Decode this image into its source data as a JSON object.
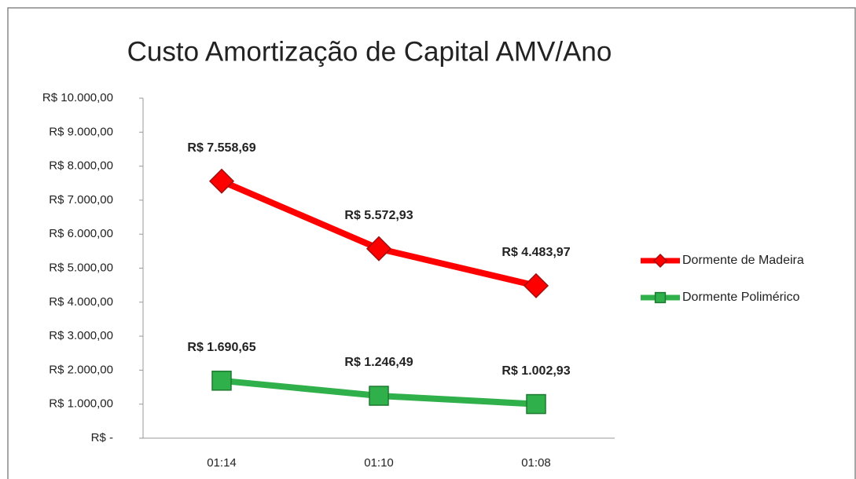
{
  "chart_data": {
    "type": "line",
    "title": "Custo Amortização de Capital AMV/Ano",
    "categories": [
      "01:14",
      "01:10",
      "01:08"
    ],
    "series": [
      {
        "name": "Dormente de Madeira",
        "color": "#ff0000",
        "marker": "diamond",
        "values": [
          7558.69,
          5572.93,
          4483.97
        ],
        "value_labels": [
          "R$ 7.558,69",
          "R$ 5.572,93",
          "R$ 4.483,97"
        ]
      },
      {
        "name": "Dormente Polimérico",
        "color": "#2fb04a",
        "marker": "square",
        "values": [
          1690.65,
          1246.49,
          1002.93
        ],
        "value_labels": [
          "R$ 1.690,65",
          "R$ 1.246,49",
          "R$ 1.002,93"
        ]
      }
    ],
    "ylim": [
      0,
      10000
    ],
    "yticks": [
      {
        "value": 0,
        "label": "R$ -"
      },
      {
        "value": 1000,
        "label": "R$ 1.000,00"
      },
      {
        "value": 2000,
        "label": "R$ 2.000,00"
      },
      {
        "value": 3000,
        "label": "R$ 3.000,00"
      },
      {
        "value": 4000,
        "label": "R$ 4.000,00"
      },
      {
        "value": 5000,
        "label": "R$ 5.000,00"
      },
      {
        "value": 6000,
        "label": "R$ 6.000,00"
      },
      {
        "value": 7000,
        "label": "R$ 7.000,00"
      },
      {
        "value": 8000,
        "label": "R$ 8.000,00"
      },
      {
        "value": 9000,
        "label": "R$ 9.000,00"
      },
      {
        "value": 10000,
        "label": "R$ 10.000,00"
      }
    ],
    "grid": false,
    "legend": "right"
  }
}
